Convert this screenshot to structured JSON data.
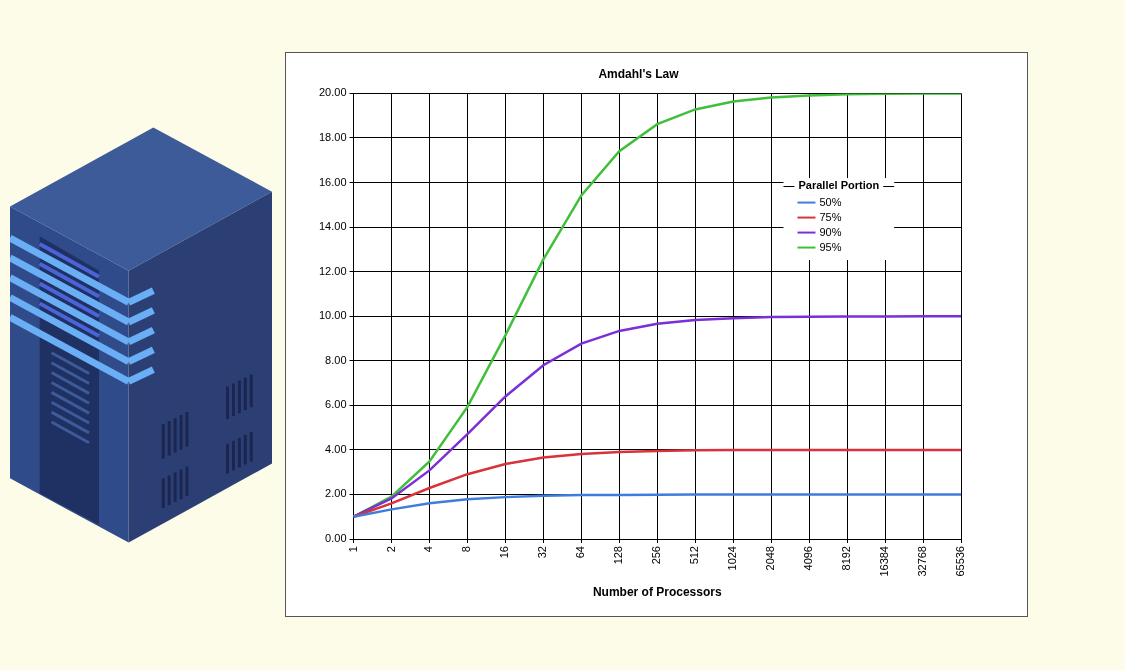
{
  "chart_data": {
    "type": "line",
    "title": "Amdahl's Law",
    "xlabel": "Number of Processors",
    "categories": [
      "1",
      "2",
      "4",
      "8",
      "16",
      "32",
      "64",
      "128",
      "256",
      "512",
      "1024",
      "2048",
      "4096",
      "8192",
      "16384",
      "32768",
      "65536"
    ],
    "series": [
      {
        "name": "50%",
        "color": "#3f7ddc",
        "values": [
          1.0,
          1.33,
          1.6,
          1.78,
          1.88,
          1.94,
          1.97,
          1.98,
          1.99,
          2.0,
          2.0,
          2.0,
          2.0,
          2.0,
          2.0,
          2.0,
          2.0
        ]
      },
      {
        "name": "75%",
        "color": "#d8333a",
        "values": [
          1.0,
          1.6,
          2.29,
          2.91,
          3.37,
          3.66,
          3.82,
          3.91,
          3.95,
          3.98,
          3.99,
          3.99,
          4.0,
          4.0,
          4.0,
          4.0,
          4.0
        ]
      },
      {
        "name": "90%",
        "color": "#7b2fd6",
        "values": [
          1.0,
          1.82,
          3.08,
          4.71,
          6.4,
          7.8,
          8.77,
          9.34,
          9.66,
          9.83,
          9.91,
          9.96,
          9.98,
          9.99,
          9.99,
          10.0,
          10.0
        ]
      },
      {
        "name": "95%",
        "color": "#3fbf3a",
        "values": [
          1.0,
          1.9,
          3.48,
          5.93,
          9.14,
          12.55,
          15.42,
          17.41,
          18.62,
          19.28,
          19.64,
          19.82,
          19.91,
          19.96,
          19.98,
          19.99,
          19.99
        ]
      }
    ],
    "ylim": [
      0,
      20
    ],
    "yticks": [
      {
        "value": 0,
        "label": "0.00"
      },
      {
        "value": 2,
        "label": "2.00"
      },
      {
        "value": 4,
        "label": "4.00"
      },
      {
        "value": 6,
        "label": "6.00"
      },
      {
        "value": 8,
        "label": "8.00"
      },
      {
        "value": 10,
        "label": "10.00"
      },
      {
        "value": 12,
        "label": "12.00"
      },
      {
        "value": 14,
        "label": "14.00"
      },
      {
        "value": 16,
        "label": "16.00"
      },
      {
        "value": 18,
        "label": "18.00"
      },
      {
        "value": 20,
        "label": "20.00"
      }
    ],
    "grid": true,
    "legend": "upper right",
    "legend_title": "Parallel Portion"
  }
}
